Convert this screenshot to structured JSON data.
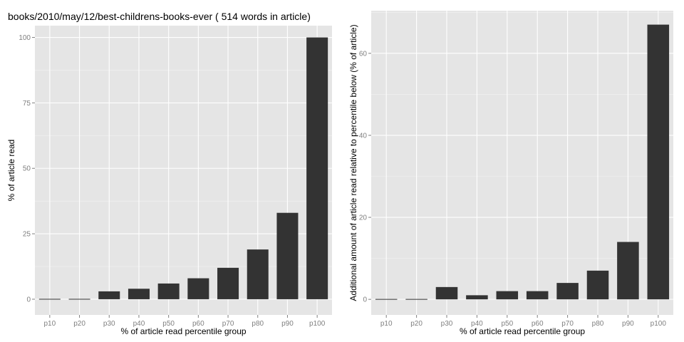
{
  "chart_data": [
    {
      "type": "bar",
      "title": "books/2010/may/12/best-childrens-books-ever ( 514 words in article)",
      "xlabel": "% of article read percentile group",
      "ylabel": "% of article read",
      "categories": [
        "p10",
        "p20",
        "p30",
        "p40",
        "p50",
        "p60",
        "p70",
        "p80",
        "p90",
        "p100"
      ],
      "values": [
        0,
        0,
        3,
        4,
        6,
        8,
        12,
        19,
        33,
        100
      ],
      "ylim": [
        -6,
        104.5
      ],
      "yticks": [
        0,
        25,
        50,
        75,
        100
      ],
      "grid": true
    },
    {
      "type": "bar",
      "title": "",
      "xlabel": "% of article read percentile group",
      "ylabel": "Additional amount of article read relative to percentile below (% of article)",
      "categories": [
        "p10",
        "p20",
        "p30",
        "p40",
        "p50",
        "p60",
        "p70",
        "p80",
        "p90",
        "p100"
      ],
      "values": [
        0,
        0,
        3,
        1,
        2,
        2,
        4,
        7,
        14,
        67
      ],
      "ylim": [
        -3.8,
        70.4
      ],
      "yticks": [
        0,
        20,
        40,
        60
      ],
      "grid": true
    }
  ]
}
